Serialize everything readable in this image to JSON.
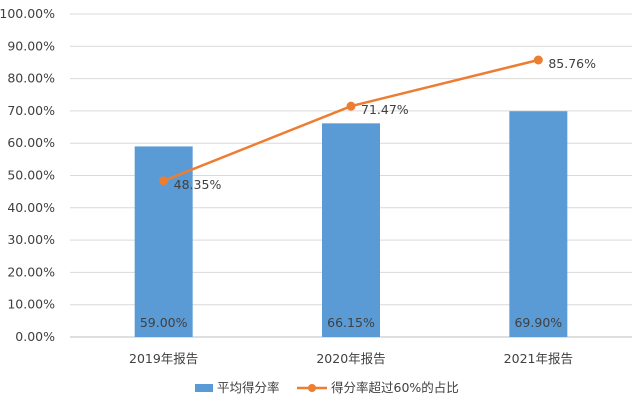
{
  "chart_data": {
    "type": "bar",
    "categories": [
      "2019年报告",
      "2020年报告",
      "2021年报告"
    ],
    "ylim": [
      0,
      100
    ],
    "yticks": [
      "0.00%",
      "10.00%",
      "20.00%",
      "30.00%",
      "40.00%",
      "50.00%",
      "60.00%",
      "70.00%",
      "80.00%",
      "90.00%",
      "100.00%"
    ],
    "grid": true,
    "legend_position": "bottom",
    "series": [
      {
        "name": "平均得分率",
        "type": "bar",
        "color": "#5b9bd5",
        "values": [
          59.0,
          66.15,
          69.9
        ],
        "labels": [
          "59.00%",
          "66.15%",
          "69.90%"
        ]
      },
      {
        "name": "得分率超过60%的占比",
        "type": "line",
        "color": "#ed7d31",
        "values": [
          48.35,
          71.47,
          85.76
        ],
        "labels": [
          "48.35%",
          "71.47%",
          "85.76%"
        ]
      }
    ]
  }
}
